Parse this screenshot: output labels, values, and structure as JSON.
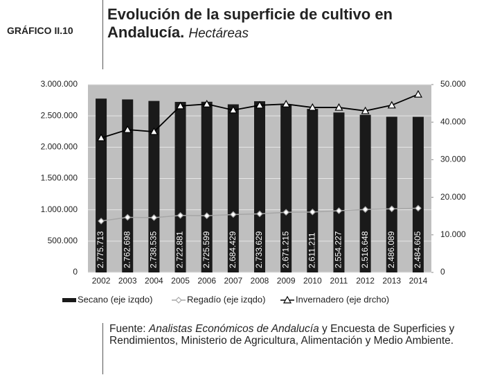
{
  "label": "GRÁFICO II.10",
  "chart_data": {
    "type": "bar",
    "title": "Evolución de la superficie de cultivo en Andalucía.",
    "subtitle": "Hectáreas",
    "categories": [
      "2002",
      "2003",
      "2004",
      "2005",
      "2006",
      "2007",
      "2008",
      "2009",
      "2010",
      "2011",
      "2012",
      "2013",
      "2014"
    ],
    "series": [
      {
        "name": "Secano (eje izqdo)",
        "type": "bar",
        "color": "#1a1a1a",
        "values": [
          2775713,
          2762698,
          2738535,
          2722881,
          2725599,
          2684429,
          2733629,
          2671215,
          2611211,
          2554227,
          2516648,
          2486089,
          2484605
        ],
        "value_labels": [
          "2.775.713",
          "2.762.698",
          "2.738.535",
          "2.722.881",
          "2.725.599",
          "2.684.429",
          "2.733.629",
          "2.671.215",
          "2.611.211",
          "2.554.227",
          "2.516.648",
          "2.486.089",
          "2.484.605"
        ]
      },
      {
        "name": "Regadío (eje izqdo)",
        "type": "line",
        "marker": "diamond",
        "color": "#a6a6a6",
        "values": [
          820000,
          880000,
          875000,
          910000,
          905000,
          925000,
          935000,
          960000,
          965000,
          985000,
          1005000,
          1015000,
          1025000
        ]
      },
      {
        "name": "Invernadero (eje drcho)",
        "type": "line",
        "marker": "triangle",
        "color": "#000000",
        "axis": "y2",
        "values": [
          35800,
          38000,
          37450,
          44300,
          44800,
          43200,
          44500,
          44800,
          43900,
          43900,
          43000,
          44500,
          47400
        ]
      }
    ],
    "ylim": [
      0,
      3000000
    ],
    "yticks": [
      0,
      {
        "value": 500000,
        "label": "500.000"
      },
      {
        "value": 1000000,
        "label": "1.000.000"
      },
      {
        "value": 1500000,
        "label": "1.500.000"
      },
      {
        "value": 2000000,
        "label": "2.000.000"
      },
      {
        "value": 2500000,
        "label": "2.500.000"
      },
      {
        "value": 3000000,
        "label": "3.000.000"
      }
    ],
    "y2lim": [
      0,
      50000
    ],
    "y2ticks": [
      0,
      {
        "value": 10000,
        "label": "10.000"
      },
      {
        "value": 20000,
        "label": "20.000"
      },
      {
        "value": 30000,
        "label": "30.000"
      },
      {
        "value": 40000,
        "label": "40.000"
      },
      {
        "value": 50000,
        "label": "50.000"
      }
    ],
    "grid": true,
    "legend": "bottom"
  },
  "source": {
    "prefix": "Fuente:",
    "italic": "Analistas Económicos de Andalucía",
    "rest": "y Encuesta de Superficies y Rendimientos, Ministerio de Agricultura, Alimentación y Medio Ambiente."
  }
}
